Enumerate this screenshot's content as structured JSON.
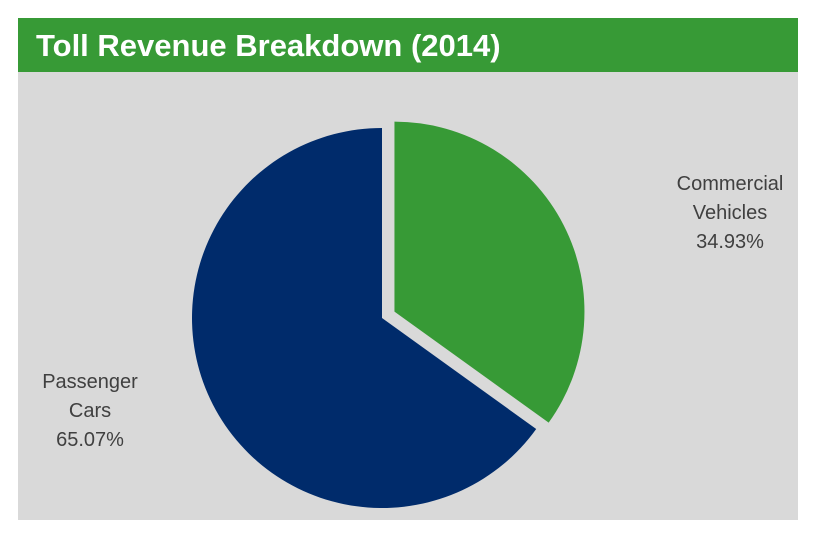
{
  "chart_data": {
    "type": "pie",
    "title": "Toll Revenue Breakdown (2014)",
    "categories": [
      "Commercial Vehicles",
      "Passenger Cars"
    ],
    "values": [
      34.93,
      65.07
    ],
    "value_labels": [
      "34.93%",
      "65.07%"
    ],
    "colors": [
      "#379a36",
      "#002b6b"
    ],
    "explode": [
      true,
      false
    ]
  }
}
